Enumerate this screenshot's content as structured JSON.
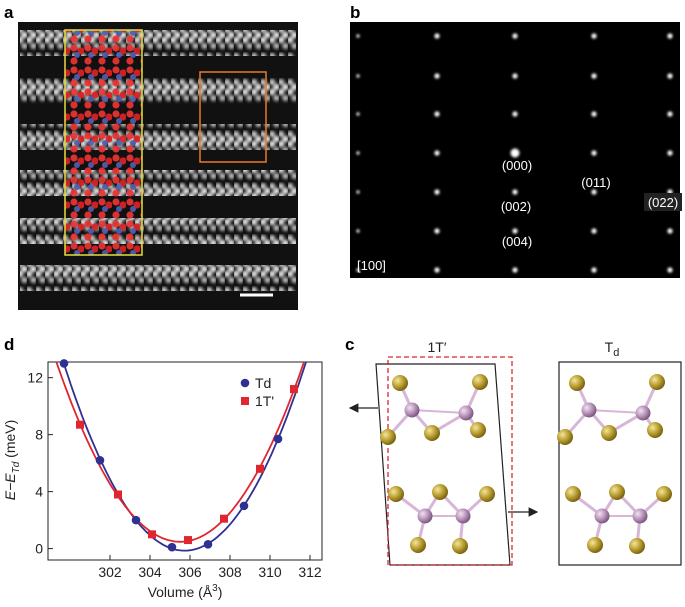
{
  "panel_labels": {
    "a": "a",
    "b": "b",
    "c": "c",
    "d": "d"
  },
  "diffraction": {
    "spots": [
      "(000)",
      "(002)",
      "(004)",
      "(011)",
      "(022)"
    ],
    "zone_axis": "[100]"
  },
  "structures": {
    "left_label": "1T′",
    "right_label_main": "T",
    "right_label_sub": "d"
  },
  "chart_data": {
    "type": "scatter",
    "x_label": "Volume (Å",
    "x_label_sup": "3",
    "x_label_end": ")",
    "y_label": "E−E",
    "y_label_sub": "Td",
    "y_label_unit": " (meV)",
    "xlim": [
      298.9,
      312.6
    ],
    "xticks": [
      302,
      304,
      306,
      308,
      310,
      312
    ],
    "ylim": [
      -0.8,
      13.1
    ],
    "yticks": [
      0,
      4,
      8,
      12
    ],
    "legend": "upper right",
    "series": [
      {
        "name": "Td",
        "color": "#2e3192",
        "marker": "circle",
        "x": [
          299.7,
          301.5,
          303.3,
          305.1,
          306.9,
          308.7,
          310.4
        ],
        "values": [
          13.0,
          6.2,
          2.0,
          0.1,
          0.3,
          3.0,
          7.7
        ]
      },
      {
        "name": "1T'",
        "color": "#e0262f",
        "marker": "square",
        "x": [
          300.5,
          302.4,
          304.1,
          305.9,
          307.7,
          309.5,
          311.2
        ],
        "values": [
          8.7,
          3.8,
          1.0,
          0.6,
          2.1,
          5.6,
          11.2
        ]
      }
    ]
  }
}
